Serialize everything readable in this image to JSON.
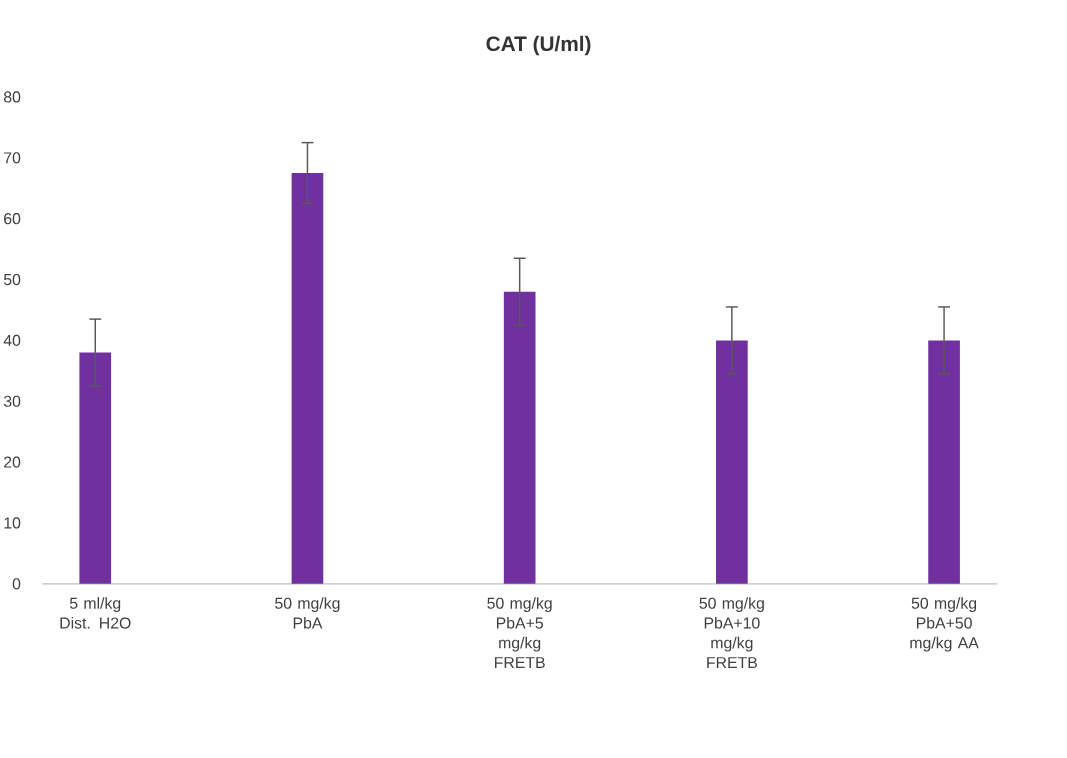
{
  "chart_data": {
    "type": "bar",
    "title": "CAT (U/ml)",
    "categories": [
      "5 ml/kg Dist. H2O",
      "50 mg/kg PbA",
      "50 mg/kg PbA+5 mg/kg FRETB",
      "50 mg/kg PbA+10 mg/kg FRETB",
      "50 mg/kg PbA+50 mg/kg AA"
    ],
    "values": [
      38,
      67.5,
      48,
      40,
      40
    ],
    "errors": [
      5.5,
      5,
      5.5,
      5.5,
      5.5
    ],
    "color": "#7030a0",
    "ylim": [
      0,
      80
    ],
    "yticks": [
      0,
      10,
      20,
      30,
      40,
      50,
      60,
      70,
      80
    ]
  }
}
